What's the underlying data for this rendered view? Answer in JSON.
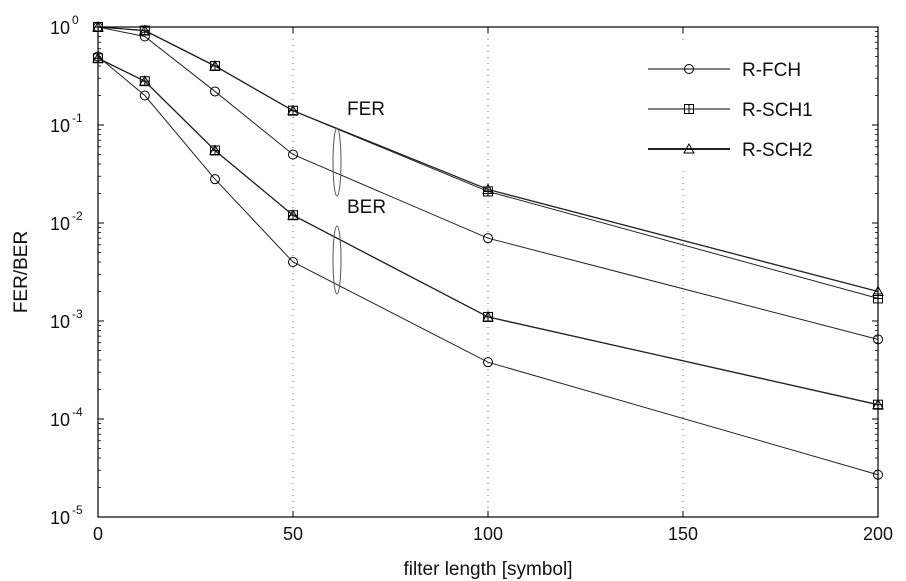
{
  "chart_data": {
    "type": "line",
    "title": "",
    "xlabel": "filter length [symbol]",
    "ylabel": "FER/BER",
    "xlim": [
      0,
      200
    ],
    "ylim": [
      1e-05,
      1
    ],
    "yscale": "log",
    "x_ticks": [
      "0",
      "50",
      "100",
      "150",
      "200"
    ],
    "y_ticks": [
      {
        "base": "10",
        "exp": "0"
      },
      {
        "base": "10",
        "exp": "-1"
      },
      {
        "base": "10",
        "exp": "-2"
      },
      {
        "base": "10",
        "exp": "-3"
      },
      {
        "base": "10",
        "exp": "-4"
      },
      {
        "base": "10",
        "exp": "-5"
      }
    ],
    "grid": "dotted tick marks only",
    "legend_position": "top-right",
    "legend": [
      {
        "name": "R-FCH",
        "marker": "circle"
      },
      {
        "name": "R-SCH1",
        "marker": "plus"
      },
      {
        "name": "R-SCH2",
        "marker": "triangle"
      }
    ],
    "annotations": [
      {
        "text": "FER",
        "x": 60,
        "y": 0.1
      },
      {
        "text": "BER",
        "x": 60,
        "y": 0.01
      }
    ],
    "series": [
      {
        "group": "FER",
        "marker": "circle",
        "x": [
          0,
          12,
          30,
          50,
          100,
          200
        ],
        "y": [
          1.0,
          0.8,
          0.22,
          0.05,
          0.007,
          0.00065
        ]
      },
      {
        "group": "FER",
        "marker": "plus",
        "x": [
          0,
          12,
          30,
          50,
          100,
          200
        ],
        "y": [
          1.0,
          0.92,
          0.4,
          0.14,
          0.021,
          0.0017
        ]
      },
      {
        "group": "FER",
        "marker": "triangle",
        "x": [
          0,
          12,
          30,
          50,
          100,
          200
        ],
        "y": [
          1.0,
          0.92,
          0.4,
          0.14,
          0.022,
          0.002
        ]
      },
      {
        "group": "BER",
        "marker": "circle",
        "x": [
          0,
          12,
          30,
          50,
          100,
          200
        ],
        "y": [
          0.5,
          0.2,
          0.028,
          0.004,
          0.00038,
          2.7e-05
        ]
      },
      {
        "group": "BER",
        "marker": "plus",
        "x": [
          0,
          12,
          30,
          50,
          100,
          200
        ],
        "y": [
          0.48,
          0.28,
          0.055,
          0.012,
          0.0011,
          0.00014
        ]
      },
      {
        "group": "BER",
        "marker": "triangle",
        "x": [
          0,
          12,
          30,
          50,
          100,
          200
        ],
        "y": [
          0.48,
          0.28,
          0.055,
          0.012,
          0.0011,
          0.00014
        ]
      }
    ]
  }
}
